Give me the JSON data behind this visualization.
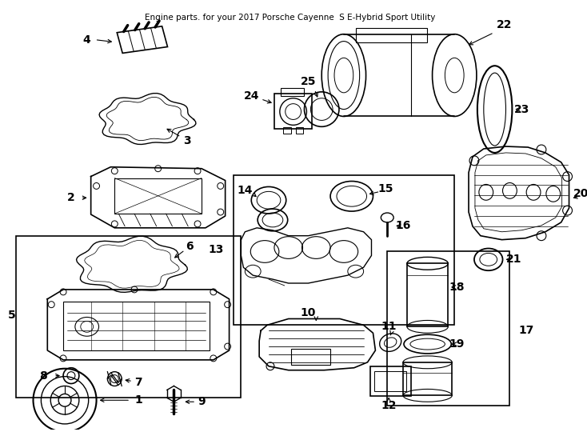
{
  "title": "Engine parts. for your 2017 Porsche Cayenne  S E-Hybrid Sport Utility",
  "background_color": "#ffffff",
  "line_color": "#000000",
  "figsize": [
    7.34,
    5.4
  ],
  "dpi": 100
}
